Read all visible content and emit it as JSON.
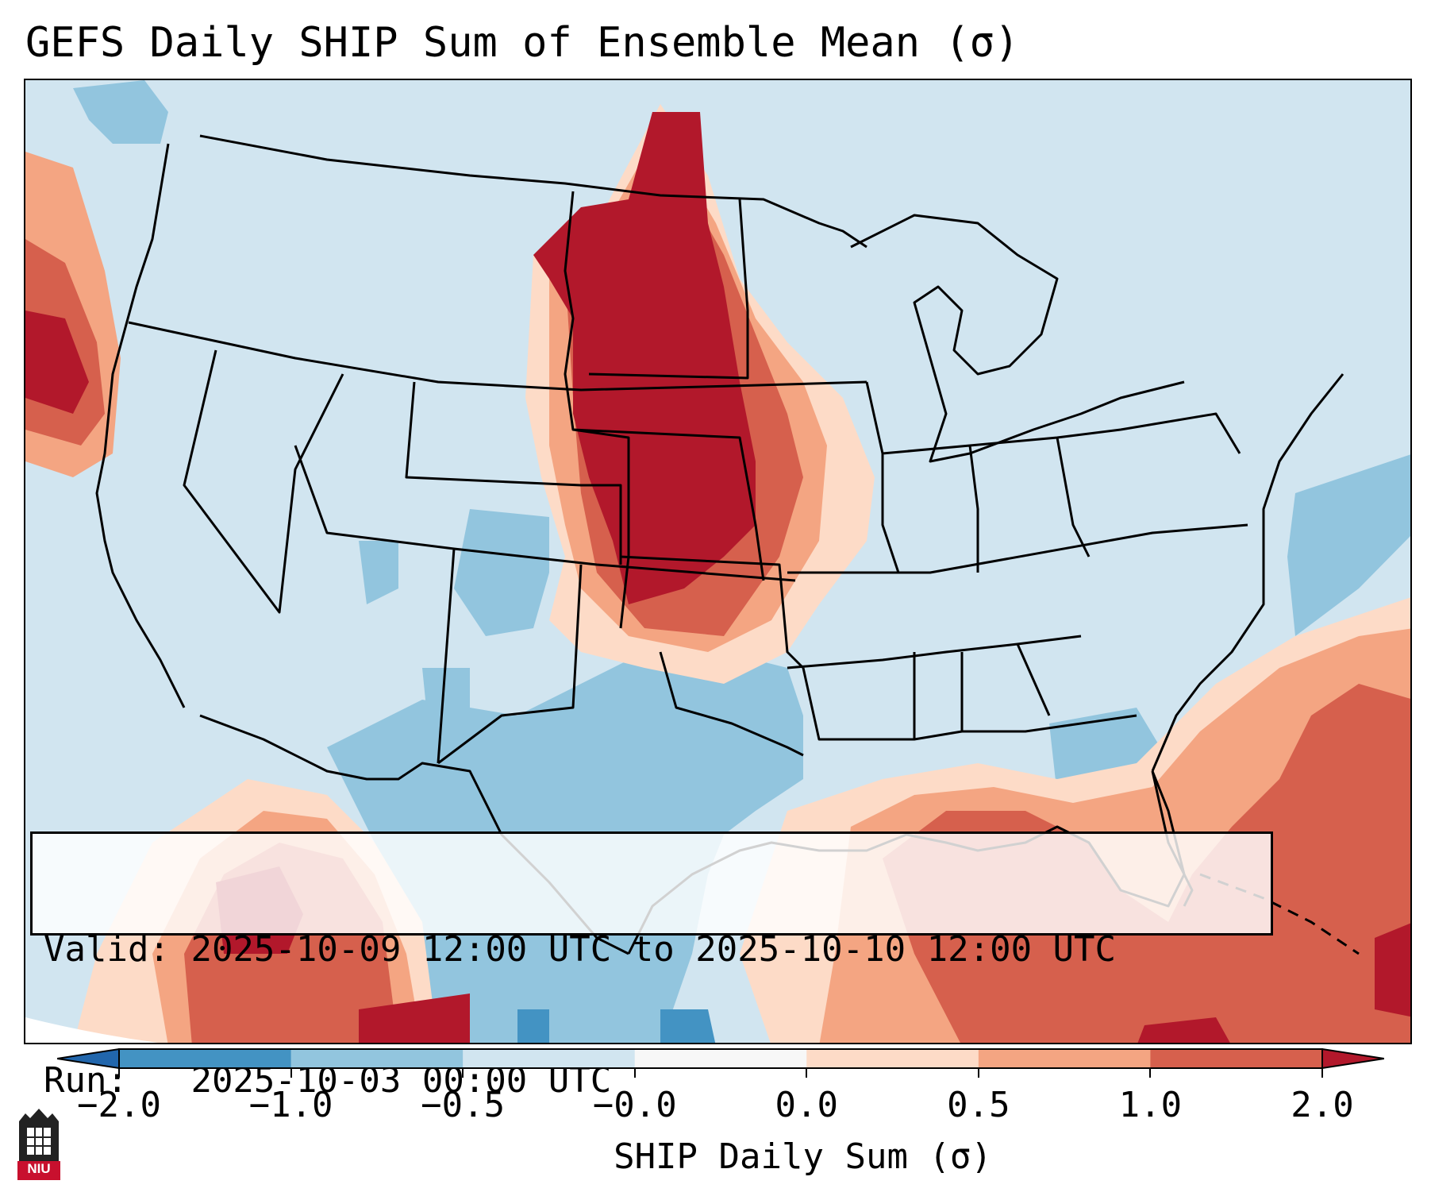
{
  "title": "GEFS Daily SHIP Sum of Ensemble Mean (σ)",
  "info": {
    "valid_label": "Valid:",
    "valid_value": "2025-10-09 12:00 UTC to 2025-10-10 12:00 UTC",
    "run_label": "Run:",
    "run_value": "2025-10-03 00:00 UTC"
  },
  "colorbar": {
    "label": "SHIP Daily Sum (σ)",
    "ticks": [
      "−2.0",
      "−1.0",
      "−0.5",
      "−0.0",
      "0.0",
      "0.5",
      "1.0",
      "2.0"
    ],
    "colors": [
      "#4393c3",
      "#92c5de",
      "#d1e5f0",
      "#f7f7f7",
      "#fddbc7",
      "#f4a582",
      "#d6604d"
    ],
    "under_color": "#2166ac",
    "over_color": "#b2182b"
  },
  "palette": {
    "strong_blue": "#4393c3",
    "blue": "#92c5de",
    "light_blue": "#d1e5f0",
    "light_red": "#fddbc7",
    "salmon": "#f4a582",
    "red": "#d6604d",
    "dark_red": "#b2182b"
  },
  "logo": {
    "text": "NIU",
    "color": "#c8102e"
  }
}
